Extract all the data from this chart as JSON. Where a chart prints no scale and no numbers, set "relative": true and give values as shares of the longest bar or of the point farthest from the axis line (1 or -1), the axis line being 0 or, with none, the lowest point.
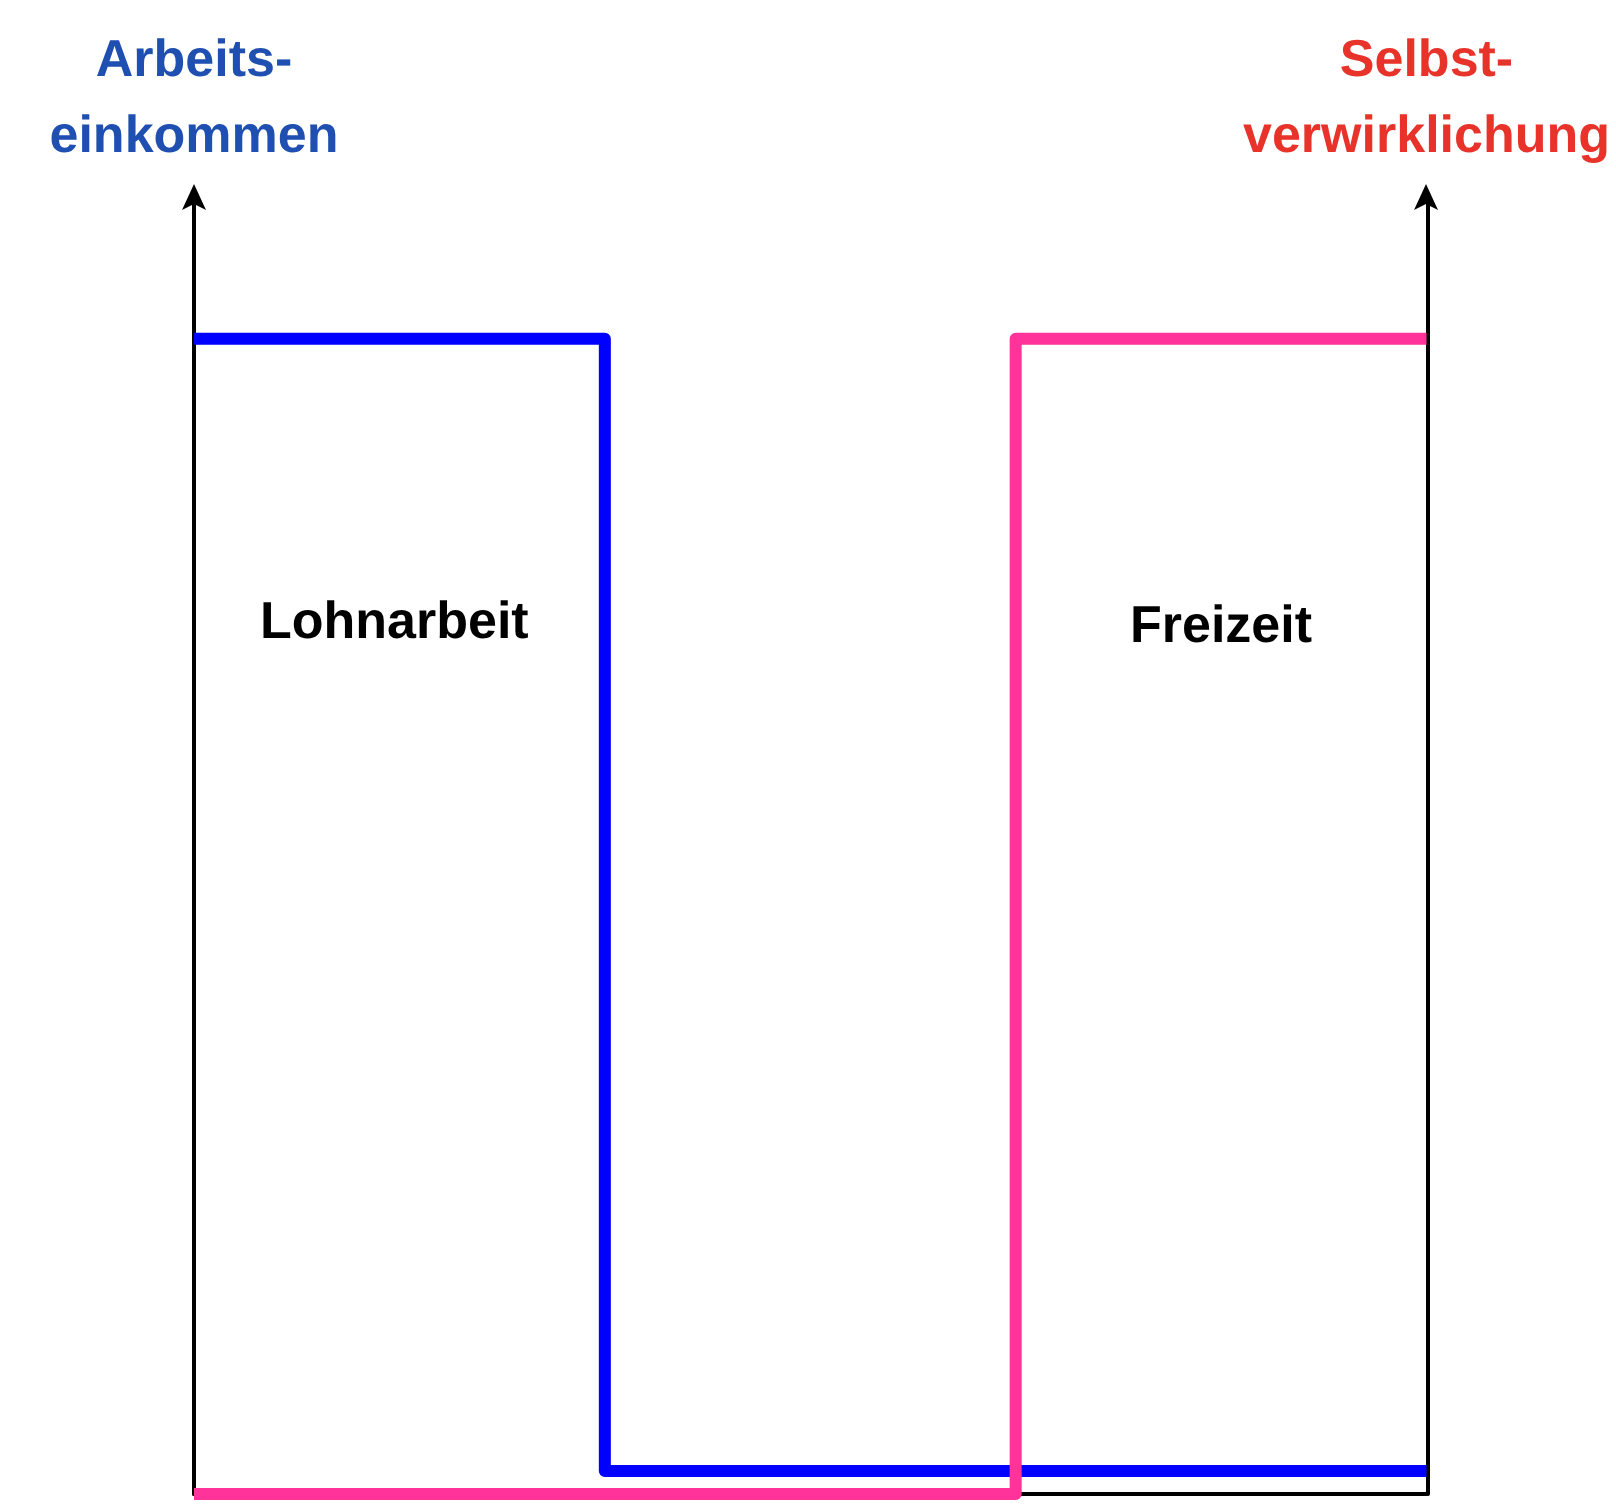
{
  "chart_data": {
    "type": "step",
    "relative": true,
    "categories": [
      null,
      null,
      null,
      null
    ],
    "ylabel": "Arbeits-\neinkommen",
    "y2label": "Selbst-\nverwirklichung",
    "annotations": [
      "Lohnarbeit",
      "Freizeit"
    ],
    "series": [
      {
        "color": "#0000ff",
        "values": [
          1,
          0.02,
          0.02,
          0.02
        ]
      },
      {
        "color": "#ff3399",
        "values": [
          0,
          0,
          1,
          1
        ]
      }
    ],
    "grid": false
  }
}
